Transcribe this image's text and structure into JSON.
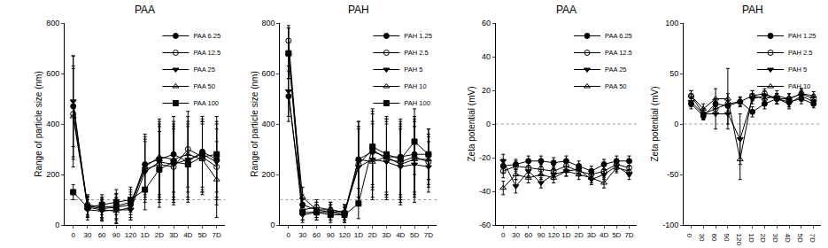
{
  "chart_data": [
    {
      "type": "line",
      "title": "PAA",
      "y_label": "Range of particle size (nm)",
      "categories": [
        "0",
        "30",
        "60",
        "90",
        "120",
        "1D",
        "2D",
        "3D",
        "4D",
        "5D",
        "7D"
      ],
      "ylim": [
        0,
        800
      ],
      "yticks": [
        0,
        200,
        400,
        600,
        800
      ],
      "reference_lines": [
        100
      ],
      "legend": "upper right",
      "series": [
        {
          "name": "PAA 6.25",
          "color": "#000000",
          "marker": "circle",
          "values": [
            470,
            75,
            65,
            70,
            80,
            240,
            260,
            280,
            250,
            290,
            260
          ],
          "error": [
            200,
            40,
            40,
            50,
            50,
            120,
            150,
            150,
            150,
            140,
            150
          ]
        },
        {
          "name": "PAA 12.5",
          "color": "#000000",
          "marker": "circle-open",
          "values": [
            440,
            80,
            70,
            75,
            90,
            220,
            240,
            230,
            300,
            270,
            230
          ],
          "error": [
            180,
            40,
            40,
            50,
            50,
            120,
            150,
            150,
            150,
            140,
            150
          ]
        },
        {
          "name": "PAA 25",
          "color": "#000000",
          "marker": "triangle-down",
          "values": [
            490,
            60,
            55,
            60,
            60,
            210,
            250,
            240,
            260,
            280,
            250
          ],
          "error": [
            180,
            40,
            40,
            50,
            40,
            120,
            150,
            150,
            150,
            140,
            150
          ]
        },
        {
          "name": "PAA 50",
          "color": "#000000",
          "marker": "triangle-up-open",
          "values": [
            430,
            70,
            60,
            55,
            70,
            230,
            270,
            260,
            280,
            260,
            180
          ],
          "error": [
            200,
            40,
            40,
            50,
            50,
            120,
            150,
            150,
            150,
            140,
            150
          ]
        },
        {
          "name": "PAA 100",
          "color": "#000000",
          "marker": "square",
          "values": [
            130,
            70,
            80,
            90,
            100,
            140,
            220,
            250,
            240,
            270,
            280
          ],
          "error": [
            30,
            40,
            40,
            50,
            50,
            80,
            150,
            150,
            150,
            140,
            150
          ]
        }
      ]
    },
    {
      "type": "line",
      "title": "PAH",
      "y_label": "Range of particle size (nm)",
      "categories": [
        "0",
        "30",
        "60",
        "90",
        "120",
        "1D",
        "2D",
        "3D",
        "4D",
        "5D",
        "7D"
      ],
      "ylim": [
        0,
        800
      ],
      "yticks": [
        0,
        200,
        400,
        600,
        800
      ],
      "reference_lines": [
        100
      ],
      "legend": "upper right",
      "series": [
        {
          "name": "PAH 1.25",
          "color": "#000000",
          "marker": "circle",
          "values": [
            510,
            80,
            60,
            50,
            40,
            260,
            290,
            270,
            270,
            280,
            280
          ],
          "error": [
            100,
            40,
            30,
            30,
            30,
            150,
            150,
            150,
            150,
            150,
            100
          ]
        },
        {
          "name": "PAH 2.5",
          "color": "#000000",
          "marker": "circle-open",
          "values": [
            730,
            60,
            70,
            60,
            50,
            240,
            300,
            260,
            250,
            270,
            250
          ],
          "error": [
            60,
            40,
            30,
            30,
            30,
            150,
            150,
            150,
            150,
            150,
            100
          ]
        },
        {
          "name": "PAH 5",
          "color": "#000000",
          "marker": "triangle-down",
          "values": [
            530,
            40,
            50,
            50,
            50,
            230,
            260,
            250,
            230,
            240,
            230
          ],
          "error": [
            100,
            30,
            30,
            30,
            30,
            150,
            150,
            150,
            150,
            150,
            100
          ]
        },
        {
          "name": "PAH 10",
          "color": "#000000",
          "marker": "triangle-up-open",
          "values": [
            680,
            110,
            60,
            60,
            50,
            260,
            250,
            270,
            240,
            260,
            260
          ],
          "error": [
            100,
            40,
            30,
            30,
            30,
            150,
            150,
            150,
            150,
            150,
            100
          ]
        },
        {
          "name": "PAH 100",
          "color": "#000000",
          "marker": "square",
          "values": [
            680,
            50,
            50,
            40,
            40,
            85,
            310,
            280,
            260,
            330,
            280
          ],
          "error": [
            100,
            30,
            30,
            30,
            30,
            60,
            150,
            150,
            150,
            130,
            100
          ]
        }
      ]
    },
    {
      "type": "line",
      "title": "PAA",
      "y_label": "Zeta potential (mV)",
      "categories": [
        "0",
        "30",
        "60",
        "90",
        "120",
        "1D",
        "2D",
        "3D",
        "4D",
        "5D",
        "7D"
      ],
      "ylim": [
        -60,
        60
      ],
      "yticks": [
        -60,
        -40,
        -20,
        0,
        20,
        40,
        60
      ],
      "reference_lines": [
        0
      ],
      "legend": "upper right",
      "series": [
        {
          "name": "PAA 6.25",
          "color": "#000000",
          "marker": "circle",
          "values": [
            -25,
            -24,
            -22,
            -22,
            -23,
            -22,
            -25,
            -28,
            -24,
            -22,
            -22
          ],
          "error": [
            4,
            3,
            3,
            3,
            3,
            3,
            3,
            3,
            3,
            3,
            3
          ]
        },
        {
          "name": "PAA 12.5",
          "color": "#000000",
          "marker": "circle-open",
          "values": [
            -28,
            -25,
            -26,
            -27,
            -28,
            -25,
            -28,
            -30,
            -28,
            -24,
            -26
          ],
          "error": [
            4,
            3,
            3,
            3,
            3,
            3,
            3,
            3,
            3,
            3,
            3
          ]
        },
        {
          "name": "PAA 25",
          "color": "#000000",
          "marker": "triangle-down",
          "values": [
            -22,
            -37,
            -28,
            -35,
            -30,
            -28,
            -27,
            -33,
            -30,
            -25,
            -30
          ],
          "error": [
            4,
            4,
            3,
            3,
            3,
            3,
            3,
            3,
            3,
            3,
            3
          ]
        },
        {
          "name": "PAA 50",
          "color": "#000000",
          "marker": "triangle-up-open",
          "values": [
            -38,
            -30,
            -32,
            -30,
            -32,
            -28,
            -30,
            -32,
            -35,
            -26,
            -28
          ],
          "error": [
            4,
            3,
            3,
            3,
            3,
            3,
            3,
            3,
            3,
            3,
            3
          ]
        }
      ]
    },
    {
      "type": "line",
      "title": "PAH",
      "y_label": "Zeta potential (mV)",
      "categories": [
        "0",
        "30",
        "60",
        "90",
        "120",
        "1D",
        "2D",
        "3D",
        "4D",
        "5D",
        "7D"
      ],
      "ylim": [
        -100,
        100
      ],
      "yticks": [
        -100,
        -50,
        0,
        50,
        100
      ],
      "reference_lines": [
        0
      ],
      "legend": "upper right",
      "series": [
        {
          "name": "PAH 1.25",
          "color": "#000000",
          "marker": "circle",
          "values": [
            20,
            8,
            20,
            18,
            22,
            12,
            20,
            25,
            22,
            25,
            20
          ],
          "error": [
            5,
            4,
            5,
            5,
            4,
            5,
            5,
            5,
            5,
            5,
            4
          ]
        },
        {
          "name": "PAH 2.5",
          "color": "#000000",
          "marker": "circle-open",
          "values": [
            28,
            10,
            15,
            20,
            22,
            28,
            30,
            25,
            25,
            30,
            25
          ],
          "error": [
            5,
            5,
            5,
            10,
            5,
            5,
            5,
            5,
            5,
            5,
            4
          ]
        },
        {
          "name": "PAH 5",
          "color": "#000000",
          "marker": "triangle-down",
          "values": [
            22,
            10,
            10,
            10,
            -15,
            25,
            28,
            25,
            20,
            28,
            22
          ],
          "error": [
            5,
            5,
            15,
            10,
            25,
            5,
            5,
            5,
            5,
            5,
            4
          ]
        },
        {
          "name": "PAH 10",
          "color": "#000000",
          "marker": "triangle-up-open",
          "values": [
            28,
            15,
            25,
            25,
            -35,
            28,
            25,
            28,
            25,
            30,
            28
          ],
          "error": [
            5,
            5,
            10,
            30,
            20,
            5,
            5,
            5,
            5,
            5,
            4
          ]
        }
      ]
    }
  ]
}
